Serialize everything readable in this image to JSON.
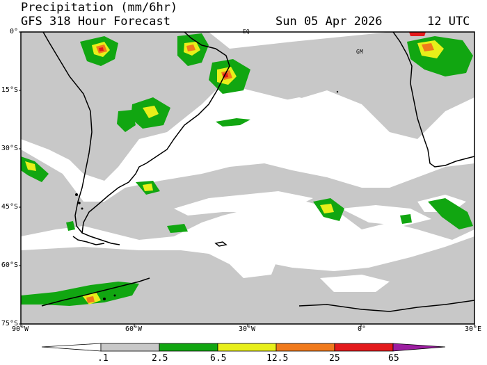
{
  "title": {
    "variable": "Precipitation (mm/6hr)",
    "model": "GFS 318 Hour Forecast",
    "date": "Sun 05 Apr 2026",
    "time": "12 UTC"
  },
  "map": {
    "lat_labels": [
      "0°",
      "15°S",
      "30°S",
      "45°S",
      "60°S",
      "75°S"
    ],
    "lon_labels": [
      "90°W",
      "60°W",
      "30°W",
      "0°",
      "30°E"
    ],
    "markers": {
      "equator": "EQ",
      "greenwich": "GM"
    }
  },
  "colorbar": {
    "thresholds": [
      ".1",
      "2.5",
      "6.5",
      "12.5",
      "25",
      "65"
    ],
    "colors": {
      "none": "#ffffff",
      "light": "#c8c8c8",
      "moderate": "#11a611",
      "heavy": "#e8ef1a",
      "very_heavy": "#f07a1c",
      "extreme": "#e31a1c",
      "max": "#9c1ea0"
    }
  },
  "colors": {
    "frame": "#000000",
    "coast": "#000000"
  }
}
